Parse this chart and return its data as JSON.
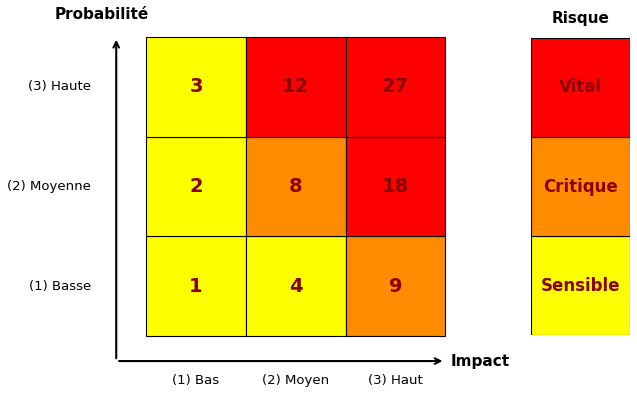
{
  "title": "",
  "ylabel": "Probabilité",
  "xlabel": "Impact",
  "matrix_colors": [
    [
      "#FFFF00",
      "#FFFF00",
      "#FF8C00"
    ],
    [
      "#FFFF00",
      "#FF8C00",
      "#FF0000"
    ],
    [
      "#FFFF00",
      "#FF0000",
      "#FF0000"
    ]
  ],
  "matrix_values": [
    [
      1,
      4,
      9
    ],
    [
      2,
      8,
      18
    ],
    [
      3,
      12,
      27
    ]
  ],
  "row_labels": [
    "(1) Basse",
    "(2) Moyenne",
    "(3) Haute"
  ],
  "col_labels": [
    "(1) Bas",
    "(2) Moyen",
    "(3) Haut"
  ],
  "legend_colors": [
    "#FFFF00",
    "#FF8C00",
    "#FF0000"
  ],
  "legend_labels": [
    "Sensible",
    "Critique",
    "Vital"
  ],
  "legend_title": "Risque",
  "value_color": "#8B0000",
  "value_fontsize": 14,
  "label_fontsize": 11,
  "title_fontsize": 12,
  "background_color": "#ffffff",
  "border_color": "#000000"
}
